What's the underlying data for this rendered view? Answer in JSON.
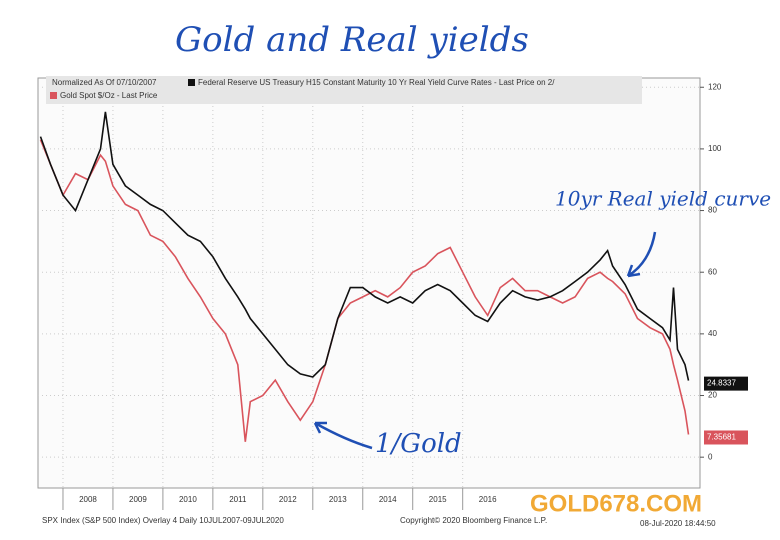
{
  "chart_data": {
    "type": "line",
    "title": "Gold and Real yields",
    "legend_header": "Normalized As Of 07/10/2007",
    "annotations": [
      "10yr Real yield curve",
      "1/Gold"
    ],
    "footer": [
      "SPX Index (S&P 500 Index) Overlay 4 Daily 10JUL2007-09JUL2020",
      "Copyright© 2020 Bloomberg Finance L.P.",
      "08-Jul-2020 18:44:50"
    ],
    "watermark": "GOLD678.COM",
    "x": [
      2007.55,
      2007.75,
      2008.0,
      2008.25,
      2008.5,
      2008.75,
      2008.85,
      2009.0,
      2009.25,
      2009.5,
      2009.75,
      2010.0,
      2010.25,
      2010.5,
      2010.75,
      2011.0,
      2011.25,
      2011.5,
      2011.65,
      2011.75,
      2012.0,
      2012.25,
      2012.5,
      2012.75,
      2013.0,
      2013.25,
      2013.5,
      2013.75,
      2014.0,
      2014.25,
      2014.5,
      2014.75,
      2015.0,
      2015.25,
      2015.5,
      2015.75,
      2016.0,
      2016.25,
      2016.5,
      2016.75,
      2017.0,
      2017.25,
      2017.5,
      2017.75,
      2018.0,
      2018.25,
      2018.5,
      2018.75,
      2018.9,
      2019.0,
      2019.25,
      2019.5,
      2019.75,
      2020.0,
      2020.15,
      2020.22,
      2020.3,
      2020.45,
      2020.52
    ],
    "series": [
      {
        "name": "Federal Reserve US Treasury H15 Constant Maturity 10 Yr Real Yield Curve Rates - Last Price on 2/",
        "color": "#111111",
        "values": [
          104,
          95,
          85,
          80,
          90,
          100,
          112,
          95,
          88,
          85,
          82,
          80,
          76,
          72,
          70,
          65,
          58,
          52,
          48,
          45,
          40,
          35,
          30,
          27,
          26,
          30,
          45,
          55,
          55,
          52,
          50,
          52,
          50,
          54,
          56,
          54,
          50,
          46,
          44,
          50,
          54,
          52,
          51,
          52,
          54,
          57,
          60,
          64,
          67,
          62,
          56,
          48,
          45,
          42,
          38,
          55,
          35,
          30,
          24.8337
        ]
      },
      {
        "name": "Gold Spot $/Oz - Last Price",
        "color": "#d9545c",
        "values": [
          103,
          95,
          85,
          92,
          90,
          98,
          96,
          88,
          82,
          80,
          72,
          70,
          65,
          58,
          52,
          45,
          40,
          30,
          5,
          18,
          20,
          25,
          18,
          12,
          18,
          30,
          45,
          50,
          52,
          54,
          52,
          55,
          60,
          62,
          66,
          68,
          60,
          52,
          46,
          55,
          58,
          54,
          54,
          52,
          50,
          52,
          58,
          60,
          58,
          57,
          53,
          45,
          42,
          40,
          35,
          30,
          25,
          15,
          7.35681
        ]
      }
    ],
    "xlim": [
      2007.5,
      2020.75
    ],
    "xticks": [
      2008,
      2009,
      2010,
      2011,
      2012,
      2013,
      2014,
      2015,
      2016
    ],
    "ylim": [
      -10,
      123
    ],
    "yticks": [
      0,
      20,
      40,
      60,
      80,
      100,
      120
    ],
    "grid": true
  }
}
